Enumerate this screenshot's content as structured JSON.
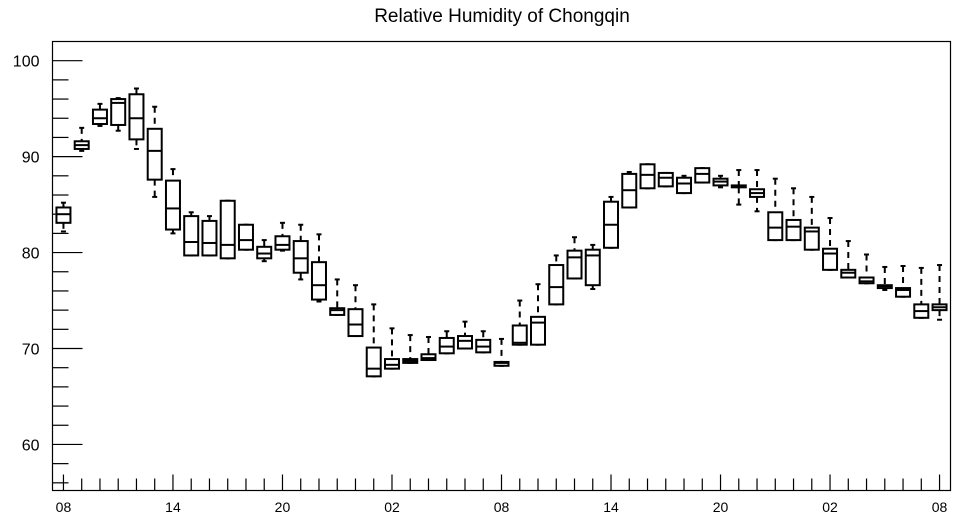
{
  "chart_data": {
    "type": "box",
    "title": "Relative Humidity of Chongqin",
    "xlabel": "",
    "ylabel": "",
    "ylim": [
      55.2,
      102
    ],
    "yticks": [
      60,
      70,
      80,
      90,
      100
    ],
    "x_tick_labels": [
      "08",
      "14",
      "20",
      "02",
      "08",
      "14",
      "20",
      "02",
      "08"
    ],
    "x_tick_hours": [
      0,
      6,
      12,
      18,
      24,
      30,
      36,
      42,
      48
    ],
    "grid": false,
    "boxes": [
      {
        "hour": 0,
        "whisker_low": 82.2,
        "q1": 83.1,
        "median": 84.0,
        "q3": 84.7,
        "whisker_high": 85.2
      },
      {
        "hour": 1,
        "whisker_low": 90.6,
        "q1": 90.8,
        "median": 91.2,
        "q3": 91.6,
        "whisker_high": 93.0
      },
      {
        "hour": 2,
        "whisker_low": 93.2,
        "q1": 93.4,
        "median": 94.0,
        "q3": 94.9,
        "whisker_high": 95.5
      },
      {
        "hour": 3,
        "whisker_low": 92.7,
        "q1": 93.3,
        "median": 95.6,
        "q3": 96.0,
        "whisker_high": 96.1
      },
      {
        "hour": 4,
        "whisker_low": 90.8,
        "q1": 91.8,
        "median": 94.0,
        "q3": 96.5,
        "whisker_high": 97.1
      },
      {
        "hour": 5,
        "whisker_low": 85.8,
        "q1": 87.6,
        "median": 90.6,
        "q3": 92.9,
        "whisker_high": 95.2
      },
      {
        "hour": 6,
        "whisker_low": 82.0,
        "q1": 82.4,
        "median": 84.6,
        "q3": 87.5,
        "whisker_high": 88.7
      },
      {
        "hour": 7,
        "whisker_low": 79.7,
        "q1": 79.7,
        "median": 81.1,
        "q3": 83.8,
        "whisker_high": 84.2
      },
      {
        "hour": 8,
        "whisker_low": 79.7,
        "q1": 79.7,
        "median": 81.0,
        "q3": 83.3,
        "whisker_high": 83.8
      },
      {
        "hour": 9,
        "whisker_low": 79.4,
        "q1": 79.4,
        "median": 80.8,
        "q3": 85.4,
        "whisker_high": 85.4
      },
      {
        "hour": 10,
        "whisker_low": 80.3,
        "q1": 80.3,
        "median": 81.3,
        "q3": 82.9,
        "whisker_high": 82.9
      },
      {
        "hour": 11,
        "whisker_low": 79.1,
        "q1": 79.4,
        "median": 79.9,
        "q3": 80.6,
        "whisker_high": 81.3
      },
      {
        "hour": 12,
        "whisker_low": 80.2,
        "q1": 80.3,
        "median": 80.8,
        "q3": 81.7,
        "whisker_high": 83.1
      },
      {
        "hour": 13,
        "whisker_low": 77.2,
        "q1": 77.9,
        "median": 79.4,
        "q3": 81.2,
        "whisker_high": 82.9
      },
      {
        "hour": 14,
        "whisker_low": 74.9,
        "q1": 75.1,
        "median": 76.6,
        "q3": 79.0,
        "whisker_high": 81.9
      },
      {
        "hour": 15,
        "whisker_low": 73.5,
        "q1": 73.5,
        "median": 74.0,
        "q3": 74.2,
        "whisker_high": 77.2
      },
      {
        "hour": 16,
        "whisker_low": 71.3,
        "q1": 71.3,
        "median": 72.5,
        "q3": 74.1,
        "whisker_high": 76.6
      },
      {
        "hour": 17,
        "whisker_low": 67.1,
        "q1": 67.1,
        "median": 67.9,
        "q3": 70.1,
        "whisker_high": 74.6
      },
      {
        "hour": 18,
        "whisker_low": 67.9,
        "q1": 67.9,
        "median": 68.3,
        "q3": 68.9,
        "whisker_high": 72.1
      },
      {
        "hour": 19,
        "whisker_low": 68.5,
        "q1": 68.5,
        "median": 68.7,
        "q3": 68.9,
        "whisker_high": 71.4
      },
      {
        "hour": 20,
        "whisker_low": 68.8,
        "q1": 68.8,
        "median": 69.0,
        "q3": 69.4,
        "whisker_high": 71.2
      },
      {
        "hour": 21,
        "whisker_low": 69.5,
        "q1": 69.5,
        "median": 70.2,
        "q3": 71.1,
        "whisker_high": 71.8
      },
      {
        "hour": 22,
        "whisker_low": 70.0,
        "q1": 70.0,
        "median": 70.8,
        "q3": 71.3,
        "whisker_high": 72.8
      },
      {
        "hour": 23,
        "whisker_low": 69.6,
        "q1": 69.6,
        "median": 70.2,
        "q3": 70.9,
        "whisker_high": 71.8
      },
      {
        "hour": 24,
        "whisker_low": 68.2,
        "q1": 68.2,
        "median": 68.5,
        "q3": 68.6,
        "whisker_high": 71.0
      },
      {
        "hour": 25,
        "whisker_low": 70.4,
        "q1": 70.4,
        "median": 70.6,
        "q3": 72.4,
        "whisker_high": 75.0
      },
      {
        "hour": 26,
        "whisker_low": 70.4,
        "q1": 70.4,
        "median": 72.7,
        "q3": 73.3,
        "whisker_high": 76.7
      },
      {
        "hour": 27,
        "whisker_low": 74.6,
        "q1": 74.6,
        "median": 76.4,
        "q3": 78.7,
        "whisker_high": 79.7
      },
      {
        "hour": 28,
        "whisker_low": 77.3,
        "q1": 77.3,
        "median": 79.5,
        "q3": 80.2,
        "whisker_high": 81.6
      },
      {
        "hour": 29,
        "whisker_low": 76.2,
        "q1": 76.6,
        "median": 79.7,
        "q3": 80.3,
        "whisker_high": 80.8
      },
      {
        "hour": 30,
        "whisker_low": 80.5,
        "q1": 80.5,
        "median": 82.9,
        "q3": 85.3,
        "whisker_high": 85.8
      },
      {
        "hour": 31,
        "whisker_low": 84.7,
        "q1": 84.7,
        "median": 86.5,
        "q3": 88.2,
        "whisker_high": 88.4
      },
      {
        "hour": 32,
        "whisker_low": 86.7,
        "q1": 86.7,
        "median": 88.1,
        "q3": 89.2,
        "whisker_high": 89.2
      },
      {
        "hour": 33,
        "whisker_low": 86.9,
        "q1": 86.9,
        "median": 87.8,
        "q3": 88.3,
        "whisker_high": 88.3
      },
      {
        "hour": 34,
        "whisker_low": 86.2,
        "q1": 86.2,
        "median": 87.2,
        "q3": 87.8,
        "whisker_high": 88.0
      },
      {
        "hour": 35,
        "whisker_low": 87.3,
        "q1": 87.3,
        "median": 88.2,
        "q3": 88.8,
        "whisker_high": 88.8
      },
      {
        "hour": 36,
        "whisker_low": 86.8,
        "q1": 87.0,
        "median": 87.4,
        "q3": 87.7,
        "whisker_high": 88.0
      },
      {
        "hour": 37,
        "whisker_low": 85.0,
        "q1": 86.8,
        "median": 86.9,
        "q3": 87.0,
        "whisker_high": 88.6
      },
      {
        "hour": 38,
        "whisker_low": 84.3,
        "q1": 85.8,
        "median": 86.2,
        "q3": 86.6,
        "whisker_high": 88.6
      },
      {
        "hour": 39,
        "whisker_low": 81.3,
        "q1": 81.3,
        "median": 82.6,
        "q3": 84.2,
        "whisker_high": 87.7
      },
      {
        "hour": 40,
        "whisker_low": 81.3,
        "q1": 81.3,
        "median": 82.7,
        "q3": 83.4,
        "whisker_high": 86.7
      },
      {
        "hour": 41,
        "whisker_low": 80.3,
        "q1": 80.3,
        "median": 82.2,
        "q3": 82.6,
        "whisker_high": 85.8
      },
      {
        "hour": 42,
        "whisker_low": 78.2,
        "q1": 78.2,
        "median": 79.9,
        "q3": 80.4,
        "whisker_high": 83.6
      },
      {
        "hour": 43,
        "whisker_low": 77.4,
        "q1": 77.4,
        "median": 77.9,
        "q3": 78.2,
        "whisker_high": 81.2
      },
      {
        "hour": 44,
        "whisker_low": 76.8,
        "q1": 76.8,
        "median": 77.0,
        "q3": 77.4,
        "whisker_high": 79.8
      },
      {
        "hour": 45,
        "whisker_low": 76.1,
        "q1": 76.3,
        "median": 76.5,
        "q3": 76.6,
        "whisker_high": 78.5
      },
      {
        "hour": 46,
        "whisker_low": 75.4,
        "q1": 75.4,
        "median": 76.1,
        "q3": 76.3,
        "whisker_high": 78.6
      },
      {
        "hour": 47,
        "whisker_low": 73.2,
        "q1": 73.2,
        "median": 73.9,
        "q3": 74.6,
        "whisker_high": 78.4
      },
      {
        "hour": 48,
        "whisker_low": 73.0,
        "q1": 74.0,
        "median": 74.3,
        "q3": 74.6,
        "whisker_high": 78.7
      }
    ]
  }
}
